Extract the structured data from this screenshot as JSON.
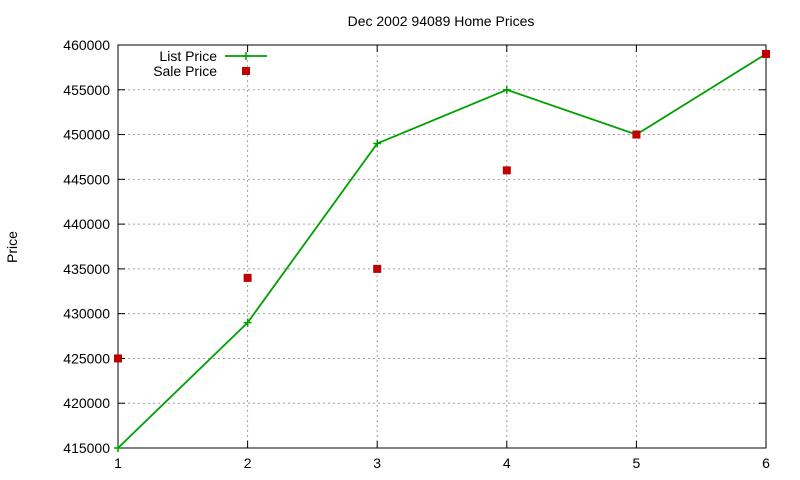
{
  "chart_data": {
    "type": "line",
    "title": "Dec 2002 94089 Home Prices",
    "xlabel": "",
    "ylabel": "Price",
    "xlim": [
      1,
      6
    ],
    "ylim": [
      415000,
      460000
    ],
    "x_ticks": [
      "1",
      "2",
      "3",
      "4",
      "5",
      "6"
    ],
    "y_ticks": [
      "415000",
      "420000",
      "425000",
      "430000",
      "435000",
      "440000",
      "445000",
      "450000",
      "455000",
      "460000"
    ],
    "grid": true,
    "legend_position": "top-left",
    "series": [
      {
        "name": "List Price",
        "style": "line-points",
        "marker": "plus",
        "color": "#00a000",
        "x": [
          1,
          2,
          3,
          4,
          5,
          6
        ],
        "values": [
          415000,
          429000,
          449000,
          455000,
          450000,
          459000
        ]
      },
      {
        "name": "Sale Price",
        "style": "points",
        "marker": "square",
        "color": "#c00000",
        "x": [
          1,
          2,
          3,
          4,
          5,
          6
        ],
        "values": [
          425000,
          434000,
          435000,
          446000,
          450000,
          459000
        ]
      }
    ]
  }
}
